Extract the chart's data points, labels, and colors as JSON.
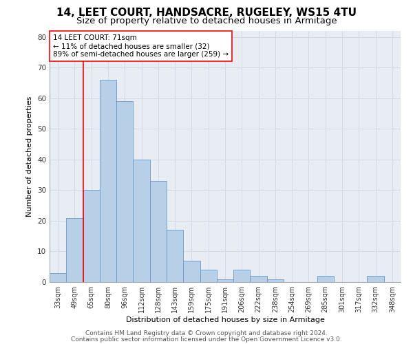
{
  "title1": "14, LEET COURT, HANDSACRE, RUGELEY, WS15 4TU",
  "title2": "Size of property relative to detached houses in Armitage",
  "xlabel": "Distribution of detached houses by size in Armitage",
  "ylabel": "Number of detached properties",
  "bar_labels": [
    "33sqm",
    "49sqm",
    "65sqm",
    "80sqm",
    "96sqm",
    "112sqm",
    "128sqm",
    "143sqm",
    "159sqm",
    "175sqm",
    "191sqm",
    "206sqm",
    "222sqm",
    "238sqm",
    "254sqm",
    "269sqm",
    "285sqm",
    "301sqm",
    "317sqm",
    "332sqm",
    "348sqm"
  ],
  "bar_values": [
    3,
    21,
    30,
    66,
    59,
    40,
    33,
    17,
    7,
    4,
    1,
    4,
    2,
    1,
    0,
    0,
    2,
    0,
    0,
    2,
    0
  ],
  "bar_color": "#b8cfe8",
  "bar_edge_color": "#6699cc",
  "annotation_box_text": "14 LEET COURT: 71sqm\n← 11% of detached houses are smaller (32)\n89% of semi-detached houses are larger (259) →",
  "annotation_box_color": "red",
  "vline_x": 1.5,
  "vline_color": "red",
  "ylim": [
    0,
    82
  ],
  "yticks": [
    0,
    10,
    20,
    30,
    40,
    50,
    60,
    70,
    80
  ],
  "grid_color": "#d0d8e4",
  "bg_color": "#e8edf4",
  "footer1": "Contains HM Land Registry data © Crown copyright and database right 2024.",
  "footer2": "Contains public sector information licensed under the Open Government Licence v3.0.",
  "title1_fontsize": 11,
  "title2_fontsize": 9.5,
  "annotation_fontsize": 7.5,
  "axis_label_fontsize": 8,
  "tick_fontsize": 7,
  "footer_fontsize": 6.5
}
